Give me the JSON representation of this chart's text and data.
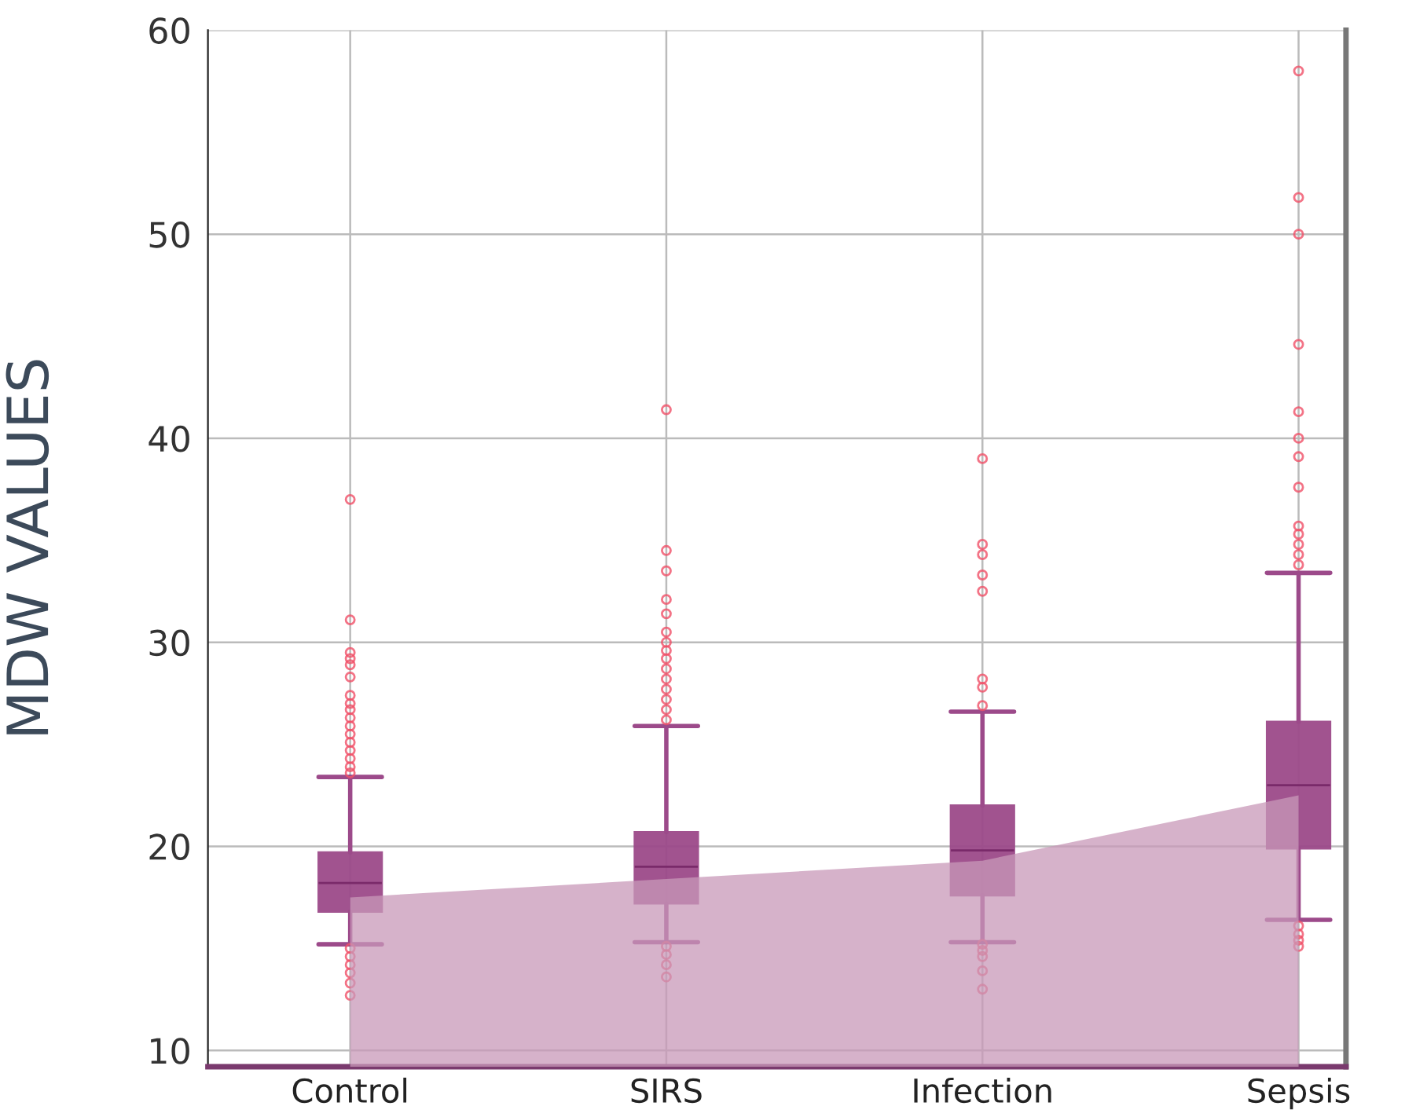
{
  "chart_data": {
    "type": "box",
    "ylabel": "MDW VALUES",
    "categories": [
      "Control",
      "SIRS",
      "Infection",
      "Sepsis"
    ],
    "series": [
      {
        "color": "#9c4a8a",
        "boxes": [
          {
            "low": 15.2,
            "q1": 16.8,
            "median": 18.2,
            "q3": 19.7,
            "high": 23.4,
            "outliers": [
              37.0,
              31.1,
              29.5,
              29.2,
              28.9,
              28.3,
              27.4,
              27.0,
              26.7,
              26.3,
              25.9,
              25.5,
              25.1,
              24.7,
              24.3,
              23.9,
              23.6,
              15.0,
              14.6,
              14.2,
              13.8,
              13.3,
              12.7
            ]
          },
          {
            "low": 15.3,
            "q1": 17.2,
            "median": 19.0,
            "q3": 20.7,
            "high": 25.9,
            "outliers": [
              41.4,
              34.5,
              33.5,
              32.1,
              31.4,
              30.5,
              30.0,
              29.6,
              29.2,
              28.7,
              28.2,
              27.7,
              27.2,
              26.7,
              26.2,
              15.1,
              14.7,
              14.2,
              13.6
            ]
          },
          {
            "low": 15.3,
            "q1": 17.6,
            "median": 19.8,
            "q3": 22.0,
            "high": 26.6,
            "outliers": [
              39.0,
              34.8,
              34.3,
              33.3,
              32.5,
              28.2,
              27.8,
              26.9,
              15.2,
              14.9,
              14.6,
              13.9,
              13.0
            ]
          },
          {
            "low": 16.4,
            "q1": 19.9,
            "median": 23.0,
            "q3": 26.1,
            "high": 33.4,
            "outliers": [
              58.0,
              51.8,
              50.0,
              44.6,
              41.3,
              40.0,
              39.1,
              37.6,
              35.7,
              35.3,
              34.8,
              34.3,
              33.8,
              16.1,
              15.7,
              15.4,
              15.1
            ]
          }
        ]
      },
      {
        "type": "area",
        "color": "#c898b8",
        "values": [
          17.5,
          18.4,
          19.3,
          22.5
        ]
      }
    ],
    "ylim": [
      9.2,
      60
    ],
    "yticks": [
      10,
      20,
      30,
      40,
      50,
      60
    ],
    "grid": true
  }
}
